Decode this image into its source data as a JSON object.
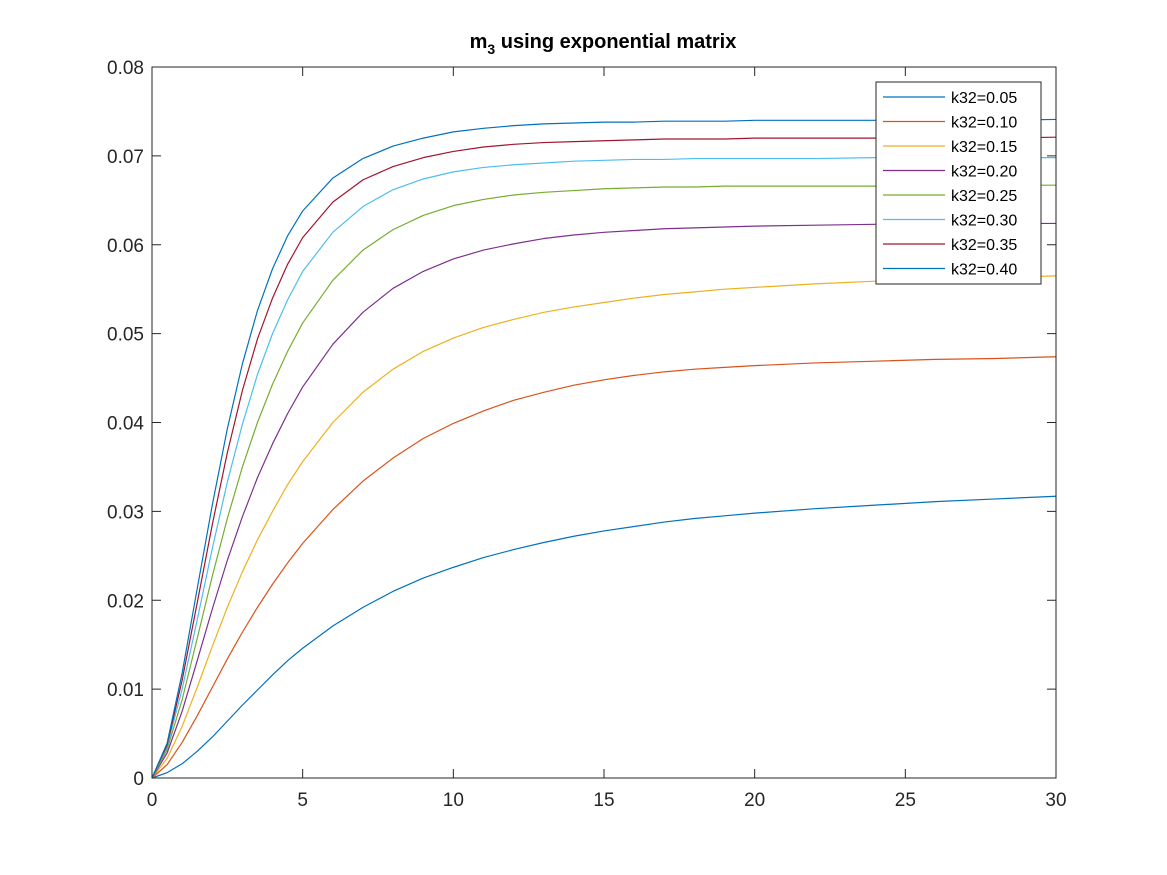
{
  "chart_data": {
    "type": "line",
    "title_main": "m",
    "title_sub": "3",
    "title_rest": " using exponential matrix",
    "xlabel": "",
    "ylabel": "",
    "xlim": [
      0,
      30
    ],
    "ylim": [
      0,
      0.08
    ],
    "x_ticks": [
      0,
      5,
      10,
      15,
      20,
      25,
      30
    ],
    "y_ticks": [
      0,
      0.01,
      0.02,
      0.03,
      0.04,
      0.05,
      0.06,
      0.07,
      0.08
    ],
    "x_tick_labels": [
      "0",
      "5",
      "10",
      "15",
      "20",
      "25",
      "30"
    ],
    "y_tick_labels": [
      "0",
      "0.01",
      "0.02",
      "0.03",
      "0.04",
      "0.05",
      "0.06",
      "0.07",
      "0.08"
    ],
    "grid": false,
    "legend_position": "top-right",
    "x": [
      0,
      0.5,
      1,
      1.5,
      2,
      2.5,
      3,
      3.5,
      4,
      4.5,
      5,
      6,
      7,
      8,
      9,
      10,
      11,
      12,
      13,
      14,
      15,
      16,
      17,
      18,
      19,
      20,
      22,
      24,
      26,
      28,
      30
    ],
    "series": [
      {
        "name": "k32=0.05",
        "color": "#0072BD",
        "values": [
          0,
          0.0006,
          0.0016,
          0.003,
          0.0046,
          0.0064,
          0.0082,
          0.0099,
          0.0116,
          0.0132,
          0.0146,
          0.0171,
          0.0192,
          0.021,
          0.0225,
          0.0237,
          0.0248,
          0.0257,
          0.0265,
          0.0272,
          0.0278,
          0.0283,
          0.0288,
          0.0292,
          0.0295,
          0.0298,
          0.0303,
          0.0307,
          0.0311,
          0.0314,
          0.0317
        ]
      },
      {
        "name": "k32=0.10",
        "color": "#D95319",
        "values": [
          0,
          0.0015,
          0.004,
          0.007,
          0.0102,
          0.0134,
          0.0164,
          0.0192,
          0.0218,
          0.0242,
          0.0264,
          0.0302,
          0.0334,
          0.036,
          0.0382,
          0.0399,
          0.0413,
          0.0425,
          0.0434,
          0.0442,
          0.0448,
          0.0453,
          0.0457,
          0.046,
          0.0462,
          0.0464,
          0.0467,
          0.0469,
          0.0471,
          0.0472,
          0.0474
        ]
      },
      {
        "name": "k32=0.15",
        "color": "#EDB120",
        "values": [
          0,
          0.0022,
          0.0058,
          0.0102,
          0.0148,
          0.0192,
          0.0232,
          0.0268,
          0.03,
          0.033,
          0.0356,
          0.04,
          0.0434,
          0.046,
          0.048,
          0.0495,
          0.0507,
          0.0516,
          0.0524,
          0.053,
          0.0535,
          0.054,
          0.0544,
          0.0547,
          0.055,
          0.0552,
          0.0556,
          0.0559,
          0.0561,
          0.0563,
          0.0565
        ]
      },
      {
        "name": "k32=0.20",
        "color": "#7E2F8E",
        "values": [
          0,
          0.0028,
          0.0075,
          0.0132,
          0.019,
          0.0245,
          0.0294,
          0.0338,
          0.0376,
          0.041,
          0.044,
          0.0488,
          0.0524,
          0.0551,
          0.057,
          0.0584,
          0.0594,
          0.0601,
          0.0607,
          0.0611,
          0.0614,
          0.0616,
          0.0618,
          0.0619,
          0.062,
          0.0621,
          0.0622,
          0.0623,
          0.0623,
          0.0624,
          0.0624
        ]
      },
      {
        "name": "k32=0.25",
        "color": "#77AC30",
        "values": [
          0,
          0.0032,
          0.0088,
          0.0157,
          0.0227,
          0.0292,
          0.035,
          0.04,
          0.0443,
          0.048,
          0.0512,
          0.056,
          0.0594,
          0.0617,
          0.0633,
          0.0644,
          0.0651,
          0.0656,
          0.0659,
          0.0661,
          0.0663,
          0.0664,
          0.0665,
          0.0665,
          0.0666,
          0.0666,
          0.0666,
          0.0666,
          0.0666,
          0.0667,
          0.0667
        ]
      },
      {
        "name": "k32=0.30",
        "color": "#4DBEEE",
        "values": [
          0,
          0.0035,
          0.01,
          0.0178,
          0.0258,
          0.0333,
          0.0398,
          0.0454,
          0.05,
          0.0538,
          0.057,
          0.0614,
          0.0643,
          0.0662,
          0.0674,
          0.0682,
          0.0687,
          0.069,
          0.0692,
          0.0694,
          0.0695,
          0.0696,
          0.0696,
          0.0697,
          0.0697,
          0.0697,
          0.0697,
          0.0698,
          0.0698,
          0.0698,
          0.0698
        ]
      },
      {
        "name": "k32=0.35",
        "color": "#A2142F",
        "values": [
          0,
          0.0037,
          0.011,
          0.0197,
          0.0285,
          0.0366,
          0.0436,
          0.0494,
          0.054,
          0.0578,
          0.0608,
          0.0648,
          0.0673,
          0.0688,
          0.0698,
          0.0705,
          0.071,
          0.0713,
          0.0715,
          0.0716,
          0.0717,
          0.0718,
          0.0719,
          0.0719,
          0.0719,
          0.072,
          0.072,
          0.072,
          0.072,
          0.072,
          0.0721
        ]
      },
      {
        "name": "k32=0.40",
        "color": "#0072BD",
        "values": [
          0,
          0.0039,
          0.0118,
          0.0213,
          0.0307,
          0.0393,
          0.0466,
          0.0526,
          0.0573,
          0.061,
          0.0638,
          0.0675,
          0.0697,
          0.0711,
          0.072,
          0.0727,
          0.0731,
          0.0734,
          0.0736,
          0.0737,
          0.0738,
          0.0738,
          0.0739,
          0.0739,
          0.0739,
          0.074,
          0.074,
          0.074,
          0.074,
          0.074,
          0.0741
        ]
      }
    ]
  }
}
